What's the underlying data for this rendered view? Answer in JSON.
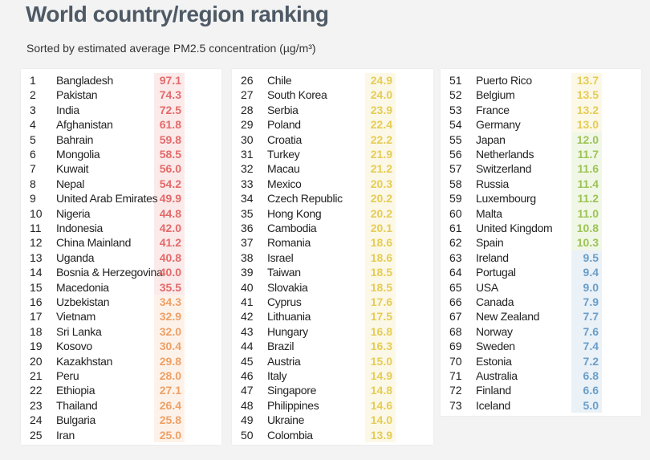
{
  "header": {
    "title": "World country/region ranking",
    "subtitle": "Sorted by estimated average PM2.5 concentration (µg/m³)"
  },
  "colors": {
    "red": "#e46a6a",
    "orange": "#eea066",
    "yellow": "#e6cc55",
    "lime": "#9cc456",
    "blue": "#6a9ec9"
  },
  "chart_data": {
    "type": "table",
    "columns": [
      "rank",
      "country",
      "pm25"
    ],
    "rows": [
      {
        "rank": "1",
        "country": "Bangladesh",
        "value": 97.1
      },
      {
        "rank": "2",
        "country": "Pakistan",
        "value": 74.3
      },
      {
        "rank": "3",
        "country": "India",
        "value": 72.5
      },
      {
        "rank": "4",
        "country": "Afghanistan",
        "value": 61.8
      },
      {
        "rank": "5",
        "country": "Bahrain",
        "value": 59.8
      },
      {
        "rank": "6",
        "country": "Mongolia",
        "value": 58.5
      },
      {
        "rank": "7",
        "country": "Kuwait",
        "value": 56.0
      },
      {
        "rank": "8",
        "country": "Nepal",
        "value": 54.2
      },
      {
        "rank": "9",
        "country": "United Arab Emirates",
        "value": 49.9
      },
      {
        "rank": "10",
        "country": "Nigeria",
        "value": 44.8
      },
      {
        "rank": "11",
        "country": "Indonesia",
        "value": 42.0
      },
      {
        "rank": "12",
        "country": "China Mainland",
        "value": 41.2
      },
      {
        "rank": "13",
        "country": "Uganda",
        "value": 40.8
      },
      {
        "rank": "14",
        "country": "Bosnia & Herzegovina",
        "value": 40.0
      },
      {
        "rank": "15",
        "country": "Macedonia",
        "value": 35.5
      },
      {
        "rank": "16",
        "country": "Uzbekistan",
        "value": 34.3
      },
      {
        "rank": "17",
        "country": "Vietnam",
        "value": 32.9
      },
      {
        "rank": "18",
        "country": "Sri Lanka",
        "value": 32.0
      },
      {
        "rank": "19",
        "country": "Kosovo",
        "value": 30.4
      },
      {
        "rank": "20",
        "country": "Kazakhstan",
        "value": 29.8
      },
      {
        "rank": "21",
        "country": "Peru",
        "value": 28.0
      },
      {
        "rank": "22",
        "country": "Ethiopia",
        "value": 27.1
      },
      {
        "rank": "23",
        "country": "Thailand",
        "value": 26.4
      },
      {
        "rank": "24",
        "country": "Bulgaria",
        "value": 25.8
      },
      {
        "rank": "25",
        "country": "Iran",
        "value": 25.0
      },
      {
        "rank": "26",
        "country": "Chile",
        "value": 24.9
      },
      {
        "rank": "27",
        "country": "South Korea",
        "value": 24.0
      },
      {
        "rank": "28",
        "country": "Serbia",
        "value": 23.9
      },
      {
        "rank": "29",
        "country": "Poland",
        "value": 22.4
      },
      {
        "rank": "30",
        "country": "Croatia",
        "value": 22.2
      },
      {
        "rank": "31",
        "country": "Turkey",
        "value": 21.9
      },
      {
        "rank": "32",
        "country": "Macau",
        "value": 21.2
      },
      {
        "rank": "33",
        "country": "Mexico",
        "value": 20.3
      },
      {
        "rank": "34",
        "country": "Czech Republic",
        "value": 20.2
      },
      {
        "rank": "35",
        "country": "Hong Kong",
        "value": 20.2
      },
      {
        "rank": "36",
        "country": "Cambodia",
        "value": 20.1
      },
      {
        "rank": "37",
        "country": "Romania",
        "value": 18.6
      },
      {
        "rank": "38",
        "country": "Israel",
        "value": 18.6
      },
      {
        "rank": "39",
        "country": "Taiwan",
        "value": 18.5
      },
      {
        "rank": "40",
        "country": "Slovakia",
        "value": 18.5
      },
      {
        "rank": "41",
        "country": "Cyprus",
        "value": 17.6
      },
      {
        "rank": "42",
        "country": "Lithuania",
        "value": 17.5
      },
      {
        "rank": "43",
        "country": "Hungary",
        "value": 16.8
      },
      {
        "rank": "44",
        "country": "Brazil",
        "value": 16.3
      },
      {
        "rank": "45",
        "country": "Austria",
        "value": 15.0
      },
      {
        "rank": "46",
        "country": "Italy",
        "value": 14.9
      },
      {
        "rank": "47",
        "country": "Singapore",
        "value": 14.8
      },
      {
        "rank": "48",
        "country": "Philippines",
        "value": 14.6
      },
      {
        "rank": "49",
        "country": "Ukraine",
        "value": 14.0
      },
      {
        "rank": "50",
        "country": "Colombia",
        "value": 13.9
      },
      {
        "rank": "51",
        "country": "Puerto Rico",
        "value": 13.7
      },
      {
        "rank": "52",
        "country": "Belgium",
        "value": 13.5
      },
      {
        "rank": "53",
        "country": "France",
        "value": 13.2
      },
      {
        "rank": "54",
        "country": "Germany",
        "value": 13.0
      },
      {
        "rank": "55",
        "country": "Japan",
        "value": 12.0
      },
      {
        "rank": "56",
        "country": "Netherlands",
        "value": 11.7
      },
      {
        "rank": "57",
        "country": "Switzerland",
        "value": 11.6
      },
      {
        "rank": "58",
        "country": "Russia",
        "value": 11.4
      },
      {
        "rank": "59",
        "country": "Luxembourg",
        "value": 11.2
      },
      {
        "rank": "60",
        "country": "Malta",
        "value": 11.0
      },
      {
        "rank": "61",
        "country": "United Kingdom",
        "value": 10.8
      },
      {
        "rank": "62",
        "country": "Spain",
        "value": 10.3
      },
      {
        "rank": "63",
        "country": "Ireland",
        "value": 9.5
      },
      {
        "rank": "64",
        "country": "Portugal",
        "value": 9.4
      },
      {
        "rank": "65",
        "country": "USA",
        "value": 9.0
      },
      {
        "rank": "66",
        "country": "Canada",
        "value": 7.9
      },
      {
        "rank": "67",
        "country": "New Zealand",
        "value": 7.7
      },
      {
        "rank": "68",
        "country": "Norway",
        "value": 7.6
      },
      {
        "rank": "69",
        "country": "Sweden",
        "value": 7.4
      },
      {
        "rank": "70",
        "country": "Estonia",
        "value": 7.2
      },
      {
        "rank": "71",
        "country": "Australia",
        "value": 6.8
      },
      {
        "rank": "72",
        "country": "Finland",
        "value": 6.6
      },
      {
        "rank": "73",
        "country": "Iceland",
        "value": 5.0
      }
    ]
  }
}
